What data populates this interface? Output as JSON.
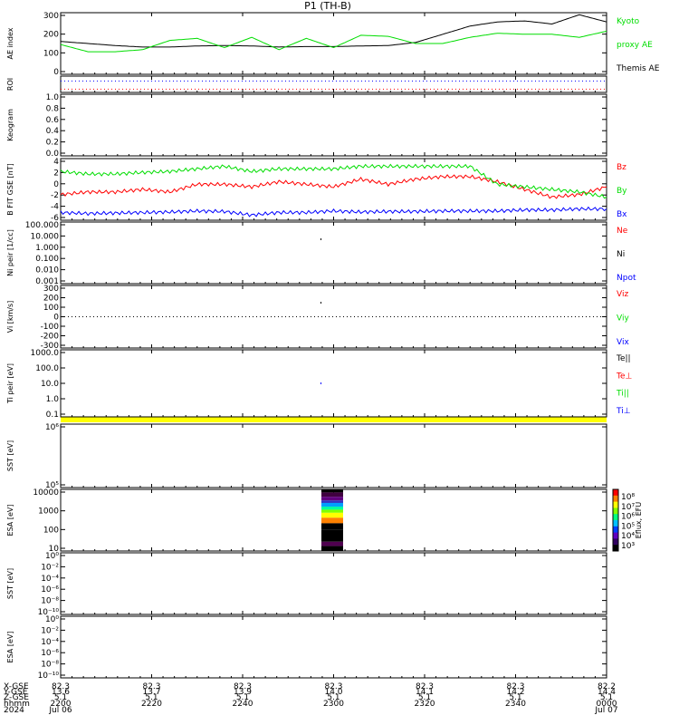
{
  "title": "P1 (TH-B)",
  "colors": {
    "black": "#000000",
    "red": "#ff0000",
    "green": "#00dd00",
    "blue": "#0000ff",
    "yellow": "#ffff00"
  },
  "chart_data": {
    "type": "line",
    "x_ticks": [
      "2200",
      "2220",
      "2240",
      "2300",
      "2320",
      "2340",
      "0000"
    ],
    "panels": [
      {
        "id": "ae",
        "ylabel": "AE index",
        "yticks": [
          "300",
          "200",
          "100",
          "0"
        ],
        "ylim": [
          0,
          300
        ],
        "legend": [
          {
            "label": "Kyoto",
            "color": "#00dd00"
          },
          {
            "label": "proxy AE",
            "color": "#00dd00"
          },
          {
            "label": "Themis AE",
            "color": "#000000"
          }
        ],
        "series": [
          {
            "name": "Themis AE",
            "color": "#000000",
            "x": [
              0,
              5,
              10,
              15,
              20,
              25,
              30,
              35,
              40,
              45,
              50,
              55,
              60,
              65,
              70,
              75,
              80,
              85,
              90,
              95,
              100
            ],
            "y": [
              160,
              150,
              140,
              133,
              133,
              138,
              140,
              138,
              133,
              135,
              135,
              138,
              140,
              155,
              195,
              235,
              255,
              260,
              245,
              290,
              255
            ]
          },
          {
            "name": "Kyoto proxy AE",
            "color": "#00dd00",
            "x": [
              0,
              5,
              10,
              15,
              20,
              25,
              30,
              35,
              40,
              45,
              50,
              55,
              60,
              65,
              70,
              75,
              80,
              85,
              90,
              95,
              100
            ],
            "y": [
              145,
              110,
              110,
              120,
              165,
              175,
              130,
              180,
              120,
              175,
              130,
              190,
              185,
              150,
              150,
              180,
              200,
              195,
              195,
              180,
              210
            ]
          }
        ]
      },
      {
        "id": "roi",
        "ylabel": "ROI",
        "yticks": [],
        "ylim": [
          0,
          1
        ],
        "legend": [],
        "dotted_lines": [
          {
            "color": "#0000ff",
            "y": 0.7
          },
          {
            "color": "#ff0000",
            "y": 0.2
          }
        ]
      },
      {
        "id": "keogram",
        "ylabel": "Keogram",
        "yticks": [
          "1.0",
          "0.8",
          "0.6",
          "0.4",
          "0.2",
          "0.0"
        ],
        "ylim": [
          0,
          1
        ],
        "legend": []
      },
      {
        "id": "bfield",
        "ylabel": "B FIT GSE [nT]",
        "yticks": [
          "4",
          "2",
          "0",
          "-2",
          "-4",
          "-6"
        ],
        "ylim": [
          -7,
          5
        ],
        "legend": [
          {
            "label": "Bz",
            "color": "#ff0000"
          },
          {
            "label": "By",
            "color": "#00dd00"
          },
          {
            "label": "Bx",
            "color": "#0000ff"
          }
        ],
        "series": [
          {
            "name": "Bz",
            "color": "#ff0000",
            "x": [
              0,
              5,
              10,
              15,
              20,
              25,
              30,
              35,
              40,
              45,
              50,
              55,
              60,
              65,
              70,
              75,
              80,
              85,
              90,
              95,
              100
            ],
            "y": [
              -2,
              -1.5,
              -1.5,
              -1,
              -1.5,
              0,
              0,
              -0.5,
              0.5,
              0,
              -0.5,
              1,
              0,
              1,
              1.5,
              1.5,
              0.5,
              -1,
              -2.5,
              -2,
              -0.5
            ]
          },
          {
            "name": "By",
            "color": "#00dd00",
            "x": [
              0,
              5,
              10,
              15,
              20,
              25,
              30,
              35,
              40,
              45,
              50,
              55,
              60,
              65,
              70,
              75,
              80,
              85,
              90,
              95,
              100
            ],
            "y": [
              2.5,
              2,
              2,
              2.3,
              2.5,
              3,
              3.5,
              2.5,
              3,
              3,
              3,
              3.5,
              3.5,
              3.5,
              3.5,
              3.5,
              0,
              -0.5,
              -1,
              -1.5,
              -2.5
            ]
          },
          {
            "name": "Bx",
            "color": "#0000ff",
            "x": [
              0,
              5,
              10,
              15,
              20,
              25,
              30,
              35,
              40,
              45,
              50,
              55,
              60,
              65,
              70,
              75,
              80,
              85,
              90,
              95,
              100
            ],
            "y": [
              -5.5,
              -5.7,
              -5.6,
              -5.5,
              -5.4,
              -5.2,
              -5.3,
              -6,
              -5.5,
              -5.5,
              -5.2,
              -5.4,
              -5.3,
              -5.3,
              -5.2,
              -5.2,
              -5.2,
              -5,
              -5,
              -4.8,
              -4.8
            ]
          }
        ]
      },
      {
        "id": "ni",
        "ylabel": "Ni peir [1/cc]",
        "yticks": [
          "100.000",
          "10.000",
          "1.000",
          "0.100",
          "0.010",
          "0.001"
        ],
        "ylim": [
          0.001,
          100
        ],
        "legend": [
          {
            "label": "Ne",
            "color": "#ff0000"
          },
          {
            "label": "Ni",
            "color": "#000000"
          },
          {
            "label": "Npot",
            "color": "#0000ff"
          }
        ]
      },
      {
        "id": "vi",
        "ylabel": "Vi [km/s]",
        "yticks": [
          "300",
          "200",
          "100",
          "0",
          "-100",
          "-200",
          "-300"
        ],
        "ylim": [
          -300,
          300
        ],
        "legend": [
          {
            "label": "Viz",
            "color": "#ff0000"
          },
          {
            "label": "Viy",
            "color": "#00dd00"
          },
          {
            "label": "Vix",
            "color": "#0000ff"
          }
        ]
      },
      {
        "id": "ti",
        "ylabel": "Ti peir [eV]",
        "yticks": [
          "1000.0",
          "100.0",
          "10.0",
          "1.0",
          "0.1"
        ],
        "ylim": [
          0.05,
          5000
        ],
        "legend": [
          {
            "label": "Te||",
            "color": "#000000"
          },
          {
            "label": "Te⊥",
            "color": "#ff0000"
          },
          {
            "label": "Ti||",
            "color": "#00dd00"
          },
          {
            "label": "Ti⊥",
            "color": "#0000ff"
          }
        ]
      },
      {
        "id": "sst1",
        "ylabel": "SST [eV]",
        "yticks": [
          "10⁶",
          "10⁵"
        ],
        "legend": []
      },
      {
        "id": "esa1",
        "ylabel": "ESA [eV]",
        "yticks": [
          "10000",
          "1000",
          "100",
          "10"
        ],
        "legend": [],
        "colorbar": {
          "label": "Eflux, EFU",
          "ticks": [
            "10⁸",
            "10⁷",
            "10⁶",
            "10⁵",
            "10⁴",
            "10³"
          ]
        }
      },
      {
        "id": "sst2",
        "ylabel": "SST [eV]",
        "yticks": [
          "10⁰",
          "10⁻²",
          "10⁻⁴",
          "10⁻⁶",
          "10⁻⁸",
          "10⁻¹⁰"
        ],
        "legend": []
      },
      {
        "id": "esa2",
        "ylabel": "ESA [eV]",
        "yticks": [
          "10⁰",
          "10⁻²",
          "10⁻⁴",
          "10⁻⁶",
          "10⁻⁸",
          "10⁻¹⁰"
        ],
        "legend": []
      }
    ],
    "ephemeris": {
      "row_labels": [
        "X-GSE",
        "Y-GSE",
        "Z-GSE",
        "hhmm",
        "2024"
      ],
      "columns": [
        [
          "82.3",
          "13.6",
          "5.1",
          "2200",
          "Jul 06"
        ],
        [
          "82.3",
          "13.7",
          "5.1",
          "2220",
          ""
        ],
        [
          "82.3",
          "13.9",
          "5.1",
          "2240",
          ""
        ],
        [
          "82.3",
          "14.0",
          "5.1",
          "2300",
          ""
        ],
        [
          "82.3",
          "14.1",
          "5.1",
          "2320",
          ""
        ],
        [
          "82.3",
          "14.2",
          "5.1",
          "2340",
          ""
        ],
        [
          "82.2",
          "14.4",
          "5.1",
          "0000",
          "Jul 07"
        ]
      ]
    }
  }
}
